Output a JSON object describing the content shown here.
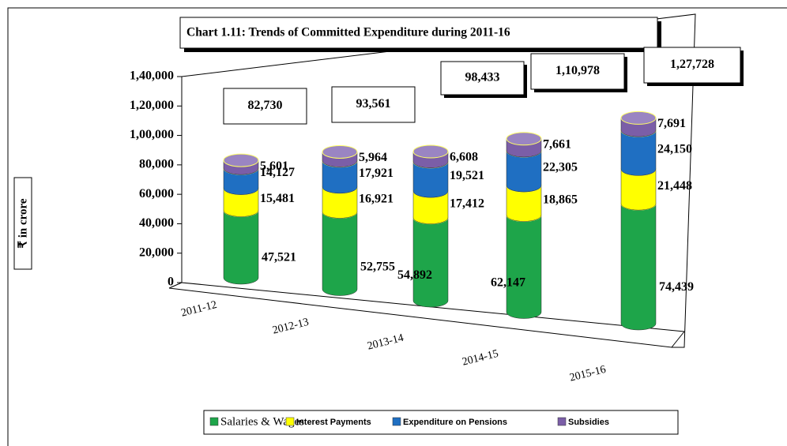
{
  "chart_data": {
    "type": "bar",
    "title": "Chart 1.11: Trends of Committed Expenditure  during 2011-16",
    "y_label": "₹ in crore",
    "categories": [
      "2011-12",
      "2012-13",
      "2013-14",
      "2014-15",
      "2015-16"
    ],
    "series": [
      {
        "name": "Salaries & Wages",
        "color": "#1ea54a",
        "values": [
          47521,
          52755,
          54892,
          62147,
          74439
        ],
        "value_labels": [
          "47,521",
          "52,755",
          "54,892",
          "62,147",
          "74,439"
        ]
      },
      {
        "name": "Interest Payments",
        "color": "#ffff00",
        "values": [
          15481,
          16921,
          17412,
          18865,
          21448
        ],
        "value_labels": [
          "15,481",
          "16,921",
          "17,412",
          "18,865",
          "21,448"
        ]
      },
      {
        "name": "Expenditure on Pensions",
        "color": "#1f6fc2",
        "values": [
          14127,
          17921,
          19521,
          22305,
          24150
        ],
        "value_labels": [
          "14,127",
          "17,921",
          "19,521",
          "22,305",
          "24,150"
        ]
      },
      {
        "name": "Subsidies",
        "color": "#7b5ea7",
        "values": [
          5601,
          5964,
          6608,
          7661,
          7691
        ],
        "value_labels": [
          "5,601",
          "5,964",
          "6,608",
          "7,661",
          "7,691"
        ]
      }
    ],
    "totals": [
      82730,
      93561,
      98433,
      110978,
      127728
    ],
    "total_labels": [
      "82,730",
      "93,561",
      "98,433",
      "1,10,978",
      "1,27,728"
    ],
    "ylim": [
      0,
      140000
    ],
    "yticks": [
      0,
      {
        "value": 20000,
        "label": "20,000"
      },
      {
        "value": 40000,
        "label": "40,000"
      },
      {
        "value": 60000,
        "label": "60,000"
      },
      {
        "value": 80000,
        "label": "80,000"
      },
      {
        "value": 100000,
        "label": "1,00,000"
      },
      {
        "value": 120000,
        "label": "1,20,000"
      },
      {
        "value": 140000,
        "label": "1,40,000"
      }
    ],
    "stacked": true
  }
}
